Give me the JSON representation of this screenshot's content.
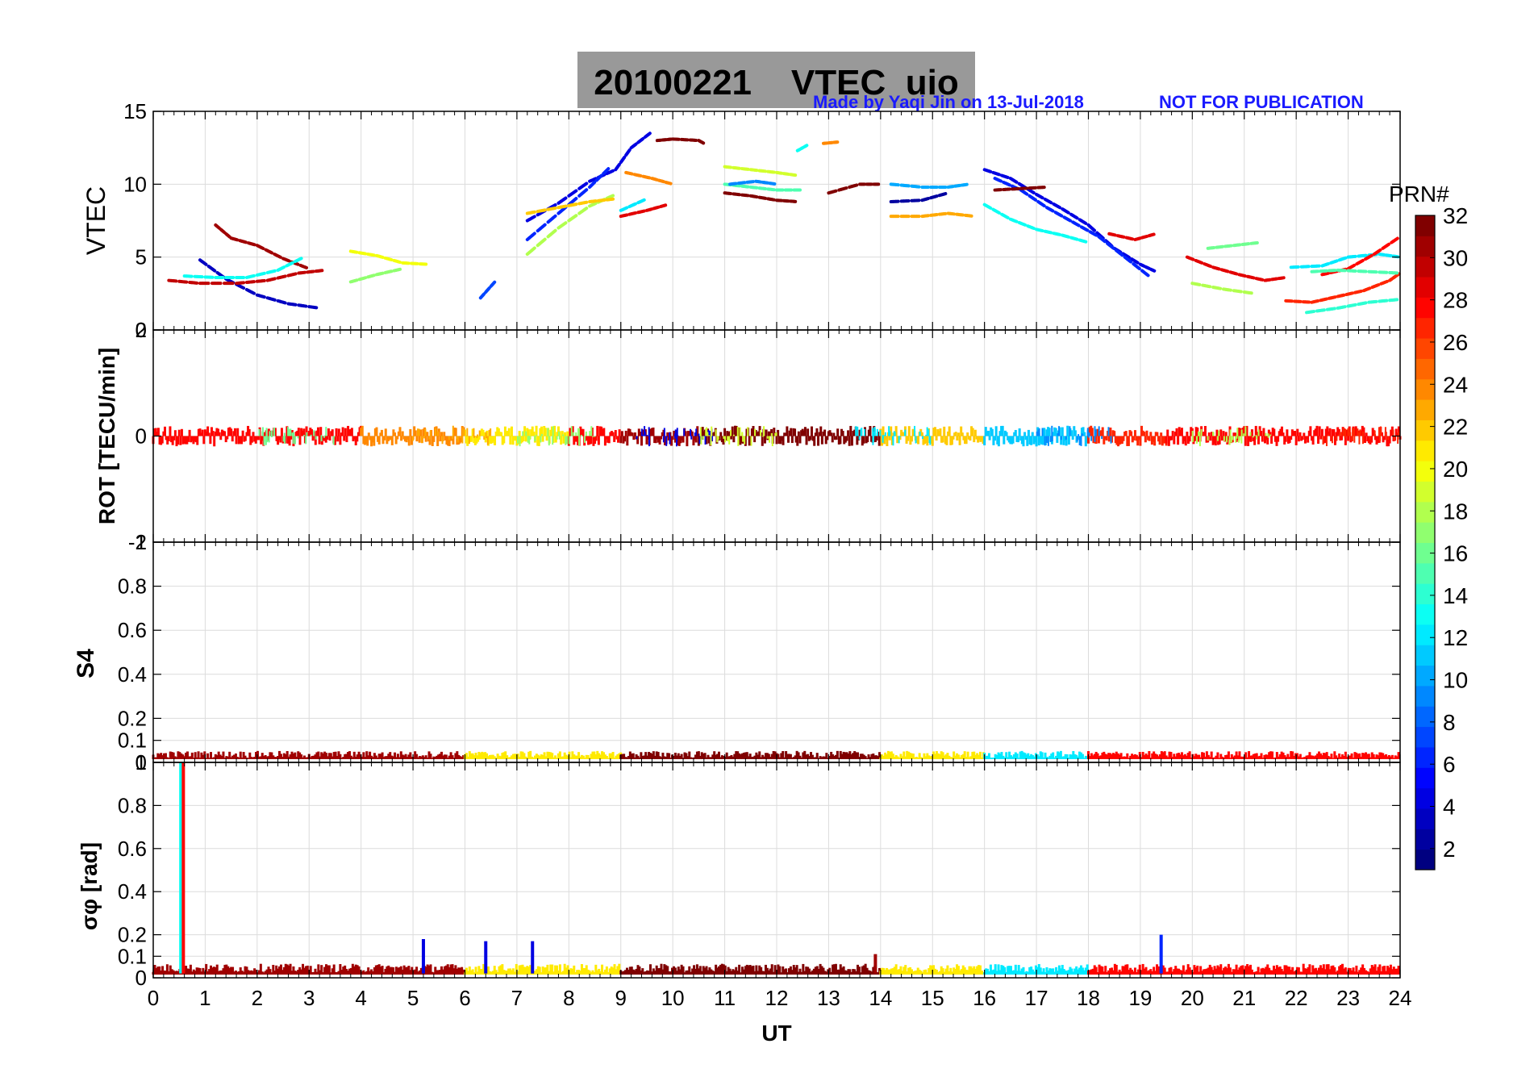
{
  "header": {
    "title": "20100221    VTEC  uio",
    "credit": "Made by Yaqi Jin on 13-Jul-2018",
    "notice": "NOT FOR PUBLICATION"
  },
  "colorbar": {
    "label": "PRN#",
    "ticks": [
      "2",
      "4",
      "6",
      "8",
      "10",
      "12",
      "14",
      "16",
      "18",
      "20",
      "22",
      "24",
      "26",
      "28",
      "30",
      "32"
    ],
    "range": [
      1,
      32
    ],
    "colormap": "jet"
  },
  "colors": {
    "axis": "#000000",
    "grid": "#dcdcdc",
    "title_box": "#999999",
    "credit_text": "#1a1aff"
  },
  "chart_data": [
    {
      "type": "scatter",
      "panel": "vtec",
      "ylabel": "VTEC",
      "ylim": [
        0,
        15
      ],
      "yticks": [
        "0",
        "5",
        "10",
        "15"
      ],
      "xlim": [
        0,
        24
      ],
      "grid": true,
      "series": [
        {
          "prn": 31,
          "x": [
            1.2,
            1.5,
            2.0,
            2.5,
            3.0
          ],
          "y": [
            7.2,
            6.3,
            5.8,
            4.9,
            4.2
          ]
        },
        {
          "prn": 3,
          "x": [
            0.9,
            1.4,
            2.0,
            2.6,
            3.2
          ],
          "y": [
            4.8,
            3.5,
            2.4,
            1.8,
            1.5
          ]
        },
        {
          "prn": 13,
          "x": [
            0.6,
            1.2,
            1.8,
            2.4,
            2.9
          ],
          "y": [
            3.7,
            3.6,
            3.6,
            4.1,
            5.0
          ]
        },
        {
          "prn": 30,
          "x": [
            0.3,
            0.9,
            1.6,
            2.2,
            2.8,
            3.3
          ],
          "y": [
            3.4,
            3.2,
            3.2,
            3.4,
            3.9,
            4.1
          ]
        },
        {
          "prn": 20,
          "x": [
            3.8,
            4.3,
            4.8,
            5.3
          ],
          "y": [
            5.4,
            5.1,
            4.6,
            4.5
          ]
        },
        {
          "prn": 17,
          "x": [
            3.8,
            4.3,
            4.8
          ],
          "y": [
            3.3,
            3.8,
            4.2
          ]
        },
        {
          "prn": 7,
          "x": [
            6.3,
            6.6
          ],
          "y": [
            2.2,
            3.4
          ]
        },
        {
          "prn": 4,
          "x": [
            7.2,
            7.8,
            8.4,
            8.9,
            9.2,
            9.6
          ],
          "y": [
            7.5,
            8.7,
            10.2,
            11.0,
            12.5,
            13.6
          ]
        },
        {
          "prn": 6,
          "x": [
            7.2,
            7.8,
            8.4,
            8.8
          ],
          "y": [
            6.2,
            8.0,
            9.8,
            11.2
          ]
        },
        {
          "prn": 18,
          "x": [
            7.2,
            7.8,
            8.4,
            8.9
          ],
          "y": [
            5.2,
            7.0,
            8.5,
            9.3
          ]
        },
        {
          "prn": 22,
          "x": [
            7.2,
            7.8,
            8.4,
            8.9
          ],
          "y": [
            8.0,
            8.4,
            8.8,
            9.0
          ]
        },
        {
          "prn": 24,
          "x": [
            9.1,
            9.6,
            10.0
          ],
          "y": [
            10.8,
            10.4,
            10.0
          ]
        },
        {
          "prn": 29,
          "x": [
            9.0,
            9.5,
            9.9
          ],
          "y": [
            7.8,
            8.2,
            8.6
          ]
        },
        {
          "prn": 12,
          "x": [
            9.0,
            9.5
          ],
          "y": [
            8.2,
            9.0
          ]
        },
        {
          "prn": 32,
          "x": [
            9.7,
            10.0,
            10.5,
            10.6
          ],
          "y": [
            13.0,
            13.1,
            13.0,
            12.8
          ]
        },
        {
          "prn": 19,
          "x": [
            11.0,
            11.5,
            12.0,
            12.4
          ],
          "y": [
            11.2,
            11.0,
            10.8,
            10.6
          ]
        },
        {
          "prn": 15,
          "x": [
            11.0,
            11.5,
            12.0,
            12.5
          ],
          "y": [
            10.0,
            9.8,
            9.6,
            9.6
          ]
        },
        {
          "prn": 32,
          "x": [
            11.0,
            11.5,
            12.0,
            12.4
          ],
          "y": [
            9.4,
            9.2,
            8.9,
            8.8
          ]
        },
        {
          "prn": 9,
          "x": [
            11.1,
            11.6,
            12.0
          ],
          "y": [
            10.0,
            10.2,
            10.0
          ]
        },
        {
          "prn": 13,
          "x": [
            12.4,
            12.6
          ],
          "y": [
            12.3,
            12.7
          ]
        },
        {
          "prn": 24,
          "x": [
            12.9,
            13.2
          ],
          "y": [
            12.8,
            12.9
          ]
        },
        {
          "prn": 32,
          "x": [
            13.0,
            13.6,
            14.0
          ],
          "y": [
            9.4,
            10.0,
            10.0
          ]
        },
        {
          "prn": 10,
          "x": [
            14.2,
            14.8,
            15.3,
            15.7
          ],
          "y": [
            10.0,
            9.8,
            9.8,
            10.0
          ]
        },
        {
          "prn": 2,
          "x": [
            14.2,
            14.8,
            15.3
          ],
          "y": [
            8.8,
            8.9,
            9.4
          ]
        },
        {
          "prn": 23,
          "x": [
            14.2,
            14.8,
            15.3,
            15.8
          ],
          "y": [
            7.8,
            7.8,
            8.0,
            7.8
          ]
        },
        {
          "prn": 4,
          "x": [
            16.0,
            16.5,
            17.0,
            17.5,
            18.0,
            18.5,
            19.0,
            19.3
          ],
          "y": [
            11.0,
            10.4,
            9.3,
            8.3,
            7.2,
            5.6,
            4.5,
            4.0
          ]
        },
        {
          "prn": 6,
          "x": [
            16.2,
            16.7,
            17.2,
            17.7,
            18.2,
            18.7,
            19.2
          ],
          "y": [
            10.4,
            9.6,
            8.4,
            7.4,
            6.4,
            5.0,
            3.6
          ]
        },
        {
          "prn": 13,
          "x": [
            16.0,
            16.5,
            17.0,
            17.5,
            18.0
          ],
          "y": [
            8.6,
            7.6,
            6.9,
            6.5,
            6.0
          ]
        },
        {
          "prn": 32,
          "x": [
            16.2,
            16.7,
            17.2
          ],
          "y": [
            9.6,
            9.7,
            9.8
          ]
        },
        {
          "prn": 29,
          "x": [
            18.4,
            18.9,
            19.3
          ],
          "y": [
            6.6,
            6.2,
            6.6
          ]
        },
        {
          "prn": 29,
          "x": [
            19.9,
            20.4,
            20.9,
            21.4,
            21.8
          ],
          "y": [
            5.0,
            4.3,
            3.8,
            3.4,
            3.6
          ]
        },
        {
          "prn": 27,
          "x": [
            21.8,
            22.3,
            22.8,
            23.3,
            23.8,
            24.0
          ],
          "y": [
            2.0,
            1.9,
            2.3,
            2.7,
            3.4,
            3.9
          ]
        },
        {
          "prn": 16,
          "x": [
            20.3,
            20.8,
            21.3
          ],
          "y": [
            5.6,
            5.8,
            6.0
          ]
        },
        {
          "prn": 18,
          "x": [
            20.0,
            20.6,
            21.2
          ],
          "y": [
            3.2,
            2.8,
            2.5
          ]
        },
        {
          "prn": 12,
          "x": [
            21.9,
            22.5,
            23.0,
            23.6,
            24.0
          ],
          "y": [
            4.3,
            4.4,
            5.0,
            5.2,
            5.0
          ]
        },
        {
          "prn": 28,
          "x": [
            22.5,
            23.0,
            23.5,
            24.0
          ],
          "y": [
            3.8,
            4.2,
            5.2,
            6.4
          ]
        },
        {
          "prn": 14,
          "x": [
            22.2,
            22.8,
            23.4,
            24.0
          ],
          "y": [
            1.2,
            1.5,
            1.9,
            2.1
          ]
        },
        {
          "prn": 15,
          "x": [
            22.3,
            22.8,
            23.4,
            24.0
          ],
          "y": [
            4.0,
            4.1,
            4.0,
            3.9
          ]
        }
      ]
    },
    {
      "type": "scatter",
      "panel": "rot",
      "ylabel": "ROT [TECU/min]",
      "ylim": [
        -2,
        2
      ],
      "yticks": [
        "-2",
        "0",
        "2"
      ],
      "xlim": [
        0,
        24
      ],
      "grid": true,
      "baseline": 0,
      "spread": 0.15
    },
    {
      "type": "scatter",
      "panel": "s4",
      "ylabel": "S4",
      "ylim": [
        0,
        1
      ],
      "yticks": [
        "0",
        "0.1",
        "0.2",
        "0.4",
        "0.6",
        "0.8",
        "1"
      ],
      "xlim": [
        0,
        24
      ],
      "grid": true,
      "baseline": 0.04
    },
    {
      "type": "scatter",
      "panel": "sigma_phi",
      "ylabel": "σφ [rad]",
      "ylim": [
        0,
        1
      ],
      "yticks": [
        "0",
        "0.1",
        "0.2",
        "0.4",
        "0.6",
        "0.8",
        "1"
      ],
      "xlim": [
        0,
        24
      ],
      "xticks": [
        "0",
        "1",
        "2",
        "3",
        "4",
        "5",
        "6",
        "7",
        "8",
        "9",
        "10",
        "11",
        "12",
        "13",
        "14",
        "15",
        "16",
        "17",
        "18",
        "19",
        "20",
        "21",
        "22",
        "23",
        "24"
      ],
      "xlabel": "UT",
      "grid": true,
      "baseline": 0.05,
      "spikes": [
        {
          "x": 0.53,
          "y": 1.0,
          "prn": 13
        },
        {
          "x": 0.58,
          "y": 1.0,
          "prn": 28
        },
        {
          "x": 5.2,
          "y": 0.18,
          "prn": 4
        },
        {
          "x": 6.4,
          "y": 0.17,
          "prn": 4
        },
        {
          "x": 7.3,
          "y": 0.17,
          "prn": 4
        },
        {
          "x": 19.4,
          "y": 0.2,
          "prn": 6
        },
        {
          "x": 13.9,
          "y": 0.11,
          "prn": 31
        }
      ]
    }
  ]
}
